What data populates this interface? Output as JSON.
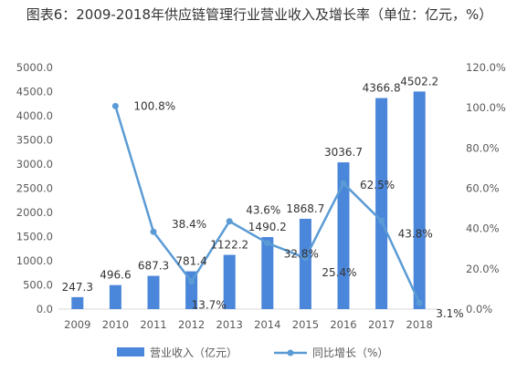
{
  "chart_data": {
    "type": "bar",
    "title": "图表6：2009-2018年供应链管理行业营业收入及增长率（单位：亿元，%）",
    "categories": [
      "2009",
      "2010",
      "2011",
      "2012",
      "2013",
      "2014",
      "2015",
      "2016",
      "2017",
      "2018"
    ],
    "series": [
      {
        "name": "营业收入（亿元）",
        "kind": "bar",
        "axis": "left",
        "color": "#4a86d9",
        "values": [
          247.3,
          496.6,
          687.3,
          781.4,
          1122.2,
          1490.2,
          1868.7,
          3036.7,
          4366.8,
          4502.2
        ],
        "labels": [
          "247.3",
          "496.6",
          "687.3",
          "781.4",
          "1122.2",
          "1490.2",
          "1868.7",
          "3036.7",
          "4366.8",
          "4502.2"
        ]
      },
      {
        "name": "同比增长（%）",
        "kind": "line",
        "axis": "right",
        "color": "#5b9bd5",
        "x": [
          "2010",
          "2011",
          "2012",
          "2013",
          "2014",
          "2015",
          "2016",
          "2017",
          "2018"
        ],
        "values": [
          100.8,
          38.4,
          13.7,
          43.6,
          32.8,
          25.4,
          62.5,
          43.8,
          3.1
        ],
        "labels": [
          "100.8%",
          "38.4%",
          "13.7%",
          "43.6%",
          "32.8%",
          "25.4%",
          "62.5%",
          "43.8%",
          "3.1%"
        ]
      }
    ],
    "y_left": {
      "ylim": [
        0,
        5000
      ],
      "ticks": [
        0,
        500,
        1000,
        1500,
        2000,
        2500,
        3000,
        3500,
        4000,
        4500,
        5000
      ],
      "tick_labels": [
        "0.0",
        "500.0",
        "1000.0",
        "1500.0",
        "2000.0",
        "2500.0",
        "3000.0",
        "3500.0",
        "4000.0",
        "4500.0",
        "5000.0"
      ]
    },
    "y_right": {
      "ylim": [
        0,
        120
      ],
      "ticks": [
        0,
        20,
        40,
        60,
        80,
        100,
        120
      ],
      "tick_labels": [
        "0.0%",
        "20.0%",
        "40.0%",
        "60.0%",
        "80.0%",
        "100.0%",
        "120.0%"
      ]
    },
    "grid": false,
    "legend": "bottom-center"
  }
}
